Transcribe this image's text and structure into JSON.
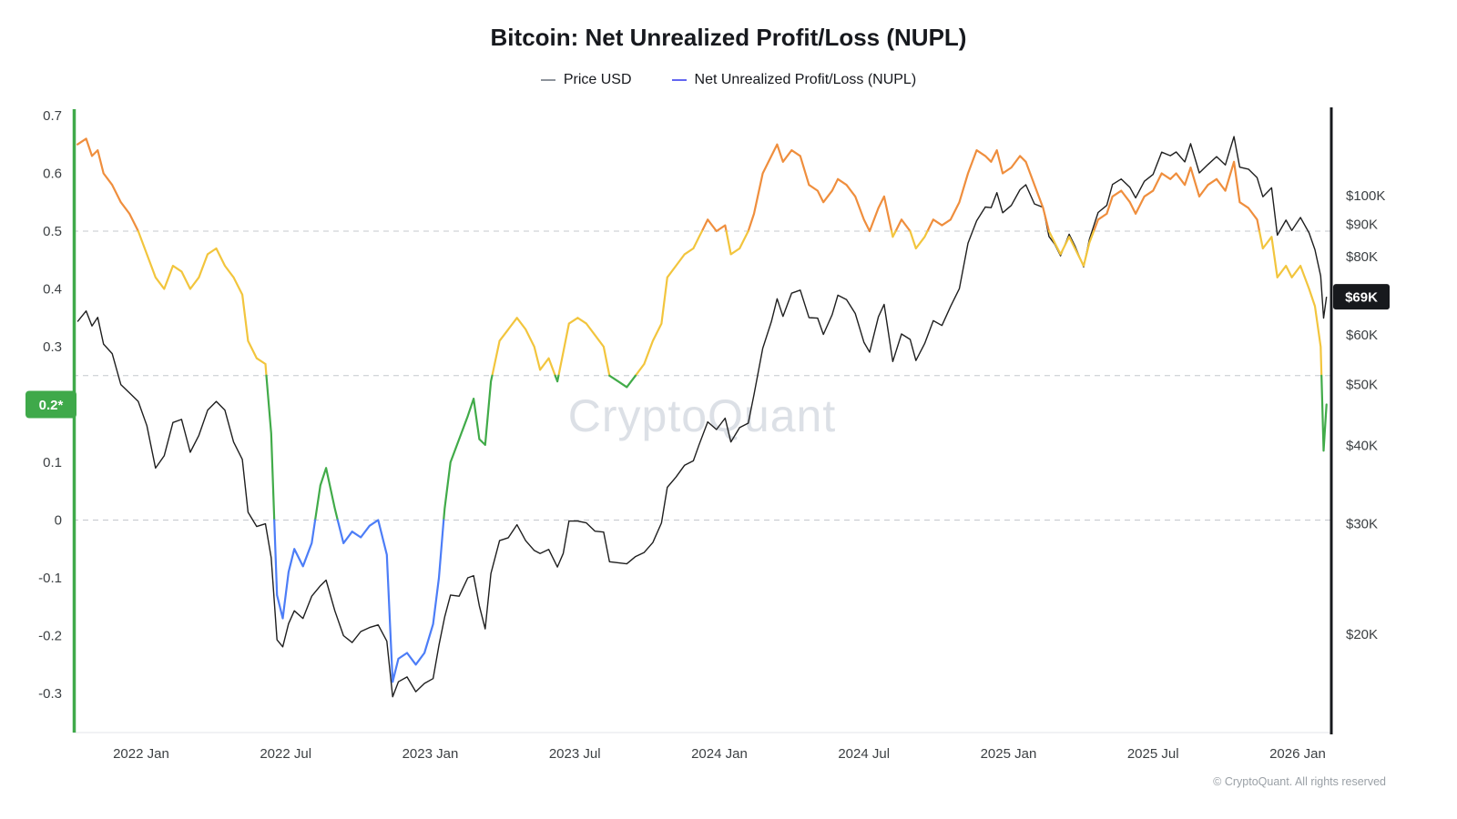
{
  "chart_data": {
    "type": "line",
    "title": "Bitcoin: Net Unrealized Profit/Loss (NUPL)",
    "x_unit": "decimal_year",
    "legend_position": "top",
    "nupl_thresholds": [
      0.5,
      0.25,
      0
    ],
    "x": [
      2021.78,
      2021.81,
      2021.83,
      2021.85,
      2021.87,
      2021.9,
      2021.93,
      2021.96,
      2021.99,
      2022.02,
      2022.05,
      2022.08,
      2022.11,
      2022.14,
      2022.17,
      2022.2,
      2022.23,
      2022.26,
      2022.29,
      2022.32,
      2022.35,
      2022.37,
      2022.4,
      2022.43,
      2022.45,
      2022.47,
      2022.49,
      2022.51,
      2022.53,
      2022.56,
      2022.59,
      2022.62,
      2022.64,
      2022.67,
      2022.7,
      2022.73,
      2022.76,
      2022.79,
      2022.82,
      2022.85,
      2022.87,
      2022.89,
      2022.92,
      2022.95,
      2022.98,
      2023.01,
      2023.03,
      2023.05,
      2023.07,
      2023.1,
      2023.13,
      2023.15,
      2023.17,
      2023.19,
      2023.21,
      2023.24,
      2023.27,
      2023.3,
      2023.33,
      2023.36,
      2023.38,
      2023.41,
      2023.44,
      2023.46,
      2023.48,
      2023.51,
      2023.54,
      2023.57,
      2023.6,
      2023.62,
      2023.65,
      2023.68,
      2023.71,
      2023.74,
      2023.77,
      2023.8,
      2023.82,
      2023.85,
      2023.88,
      2023.91,
      2023.93,
      2023.96,
      2023.99,
      2024.02,
      2024.04,
      2024.07,
      2024.1,
      2024.12,
      2024.15,
      2024.18,
      2024.2,
      2024.22,
      2024.25,
      2024.28,
      2024.31,
      2024.34,
      2024.36,
      2024.39,
      2024.41,
      2024.44,
      2024.47,
      2024.5,
      2024.52,
      2024.55,
      2024.57,
      2024.6,
      2024.63,
      2024.66,
      2024.68,
      2024.71,
      2024.74,
      2024.77,
      2024.8,
      2024.83,
      2024.86,
      2024.89,
      2024.92,
      2024.94,
      2024.96,
      2024.98,
      2025.01,
      2025.04,
      2025.06,
      2025.09,
      2025.12,
      2025.14,
      2025.16,
      2025.18,
      2025.21,
      2025.23,
      2025.26,
      2025.28,
      2025.31,
      2025.34,
      2025.36,
      2025.39,
      2025.42,
      2025.44,
      2025.47,
      2025.5,
      2025.53,
      2025.56,
      2025.58,
      2025.61,
      2025.63,
      2025.66,
      2025.69,
      2025.72,
      2025.75,
      2025.78,
      2025.8,
      2025.83,
      2025.86,
      2025.88,
      2025.91,
      2025.93,
      2025.96,
      2025.98,
      2026.01,
      2026.04,
      2026.06,
      2026.08,
      2026.09,
      2026.1
    ],
    "series": [
      {
        "name": "Price USD",
        "axis": "right",
        "scale": "log",
        "unit": "USD_thousands",
        "legend_color": "#8d939b",
        "line_color": "#1f1f1f",
        "values": [
          63,
          65.5,
          62,
          64,
          58,
          56,
          50,
          48.5,
          47,
          43,
          36.8,
          38.5,
          43.5,
          44,
          39,
          41.5,
          45.5,
          47,
          45.5,
          40.5,
          38,
          31.3,
          29.7,
          30,
          26.5,
          19.6,
          19.1,
          20.8,
          21.8,
          21.2,
          23,
          23.9,
          24.4,
          21.8,
          19.9,
          19.4,
          20.2,
          20.5,
          20.7,
          19.5,
          15.9,
          16.8,
          17.1,
          16.2,
          16.7,
          17,
          19.2,
          21.3,
          23.1,
          23,
          24.6,
          24.8,
          22.2,
          20.4,
          25,
          28.2,
          28.5,
          29.9,
          28.2,
          27.2,
          26.9,
          27.3,
          25.6,
          26.9,
          30.3,
          30.3,
          30.1,
          29.2,
          29.1,
          26.1,
          26,
          25.9,
          26.6,
          27,
          28,
          30.1,
          34.3,
          35.6,
          37.2,
          37.8,
          40.1,
          43.6,
          42.4,
          44.2,
          40.5,
          42.7,
          43.4,
          48.2,
          57.1,
          63,
          68.5,
          64.2,
          69.9,
          70.7,
          63.9,
          63.8,
          60.1,
          64.6,
          69.4,
          68.3,
          64.9,
          58.4,
          56.3,
          64.1,
          67.1,
          54.4,
          60.2,
          59,
          54.6,
          58.1,
          63.2,
          62.1,
          66.6,
          71.1,
          84,
          91.2,
          95.9,
          95.7,
          101.1,
          93.9,
          96.5,
          102.2,
          104.1,
          97,
          95.8,
          86.1,
          83.7,
          80.2,
          86.8,
          83.1,
          77,
          85.2,
          94,
          96.5,
          104.2,
          106.3,
          103.1,
          99.2,
          105.4,
          108.1,
          117.3,
          115.8,
          117.4,
          113.2,
          121,
          108.7,
          112.1,
          115.4,
          111.9,
          124.2,
          111,
          110.2,
          106.8,
          99.6,
          102.9,
          86.5,
          91.4,
          88,
          92.3,
          87.2,
          82,
          74.5,
          63.8,
          69
        ]
      },
      {
        "name": "Net Unrealized Profit/Loss (NUPL)",
        "axis": "left",
        "legend_color": "#6366F1",
        "band_colors": {
          "above_0_5": "#EF8E3D",
          "between_0_25_0_5": "#F2C53D",
          "between_0_0_25": "#41AB49",
          "below_0": "#4C7DF7"
        },
        "values": [
          0.65,
          0.66,
          0.63,
          0.64,
          0.6,
          0.58,
          0.55,
          0.53,
          0.5,
          0.46,
          0.42,
          0.4,
          0.44,
          0.43,
          0.4,
          0.42,
          0.46,
          0.47,
          0.44,
          0.42,
          0.39,
          0.31,
          0.28,
          0.27,
          0.15,
          -0.13,
          -0.17,
          -0.09,
          -0.05,
          -0.08,
          -0.04,
          0.06,
          0.09,
          0.02,
          -0.04,
          -0.02,
          -0.03,
          -0.01,
          0,
          -0.06,
          -0.28,
          -0.24,
          -0.23,
          -0.25,
          -0.23,
          -0.18,
          -0.1,
          0.02,
          0.1,
          0.14,
          0.18,
          0.21,
          0.14,
          0.13,
          0.24,
          0.31,
          0.33,
          0.35,
          0.33,
          0.3,
          0.26,
          0.28,
          0.24,
          0.29,
          0.34,
          0.35,
          0.34,
          0.32,
          0.3,
          0.25,
          0.24,
          0.23,
          0.25,
          0.27,
          0.31,
          0.34,
          0.42,
          0.44,
          0.46,
          0.47,
          0.49,
          0.52,
          0.5,
          0.51,
          0.46,
          0.47,
          0.5,
          0.53,
          0.6,
          0.63,
          0.65,
          0.62,
          0.64,
          0.63,
          0.58,
          0.57,
          0.55,
          0.57,
          0.59,
          0.58,
          0.56,
          0.52,
          0.5,
          0.54,
          0.56,
          0.49,
          0.52,
          0.5,
          0.47,
          0.49,
          0.52,
          0.51,
          0.52,
          0.55,
          0.6,
          0.64,
          0.63,
          0.62,
          0.64,
          0.6,
          0.61,
          0.63,
          0.62,
          0.58,
          0.54,
          0.5,
          0.48,
          0.46,
          0.49,
          0.47,
          0.44,
          0.48,
          0.52,
          0.53,
          0.56,
          0.57,
          0.55,
          0.53,
          0.56,
          0.57,
          0.6,
          0.59,
          0.6,
          0.58,
          0.61,
          0.56,
          0.58,
          0.59,
          0.57,
          0.62,
          0.55,
          0.54,
          0.52,
          0.47,
          0.49,
          0.42,
          0.44,
          0.42,
          0.44,
          0.4,
          0.37,
          0.3,
          0.12,
          0.2
        ]
      }
    ],
    "axes": {
      "left": {
        "range": [
          -0.3,
          0.7
        ],
        "ticks": [
          {
            "label": "0.7",
            "value": 0.7
          },
          {
            "label": "0.6",
            "value": 0.6
          },
          {
            "label": "0.5",
            "value": 0.5
          },
          {
            "label": "0.4",
            "value": 0.4
          },
          {
            "label": "0.3",
            "value": 0.3
          },
          {
            "label": "0.2",
            "value": 0.2
          },
          {
            "label": "0.1",
            "value": 0.1
          },
          {
            "label": "0",
            "value": 0
          },
          {
            "label": "-0.1",
            "value": -0.1
          },
          {
            "label": "-0.2",
            "value": -0.2
          },
          {
            "label": "-0.3",
            "value": -0.3
          }
        ]
      },
      "right": {
        "scale": "log",
        "ticks": [
          {
            "label": "$100K",
            "value_k": 100
          },
          {
            "label": "$90K",
            "value_k": 90
          },
          {
            "label": "$80K",
            "value_k": 80
          },
          {
            "label": "$60K",
            "value_k": 60
          },
          {
            "label": "$50K",
            "value_k": 50
          },
          {
            "label": "$40K",
            "value_k": 40
          },
          {
            "label": "$30K",
            "value_k": 30
          },
          {
            "label": "$20K",
            "value_k": 20
          }
        ]
      },
      "x": {
        "ticks": [
          {
            "label": "2022 Jan",
            "t": 2022.0
          },
          {
            "label": "2022 Jul",
            "t": 2022.5
          },
          {
            "label": "2023 Jan",
            "t": 2023.0
          },
          {
            "label": "2023 Jul",
            "t": 2023.5
          },
          {
            "label": "2024 Jan",
            "t": 2024.0
          },
          {
            "label": "2024 Jul",
            "t": 2024.5
          },
          {
            "label": "2025 Jan",
            "t": 2025.0
          },
          {
            "label": "2025 Jul",
            "t": 2025.5
          },
          {
            "label": "2026 Jan",
            "t": 2026.0
          }
        ]
      }
    }
  },
  "badges": {
    "left": {
      "text": "0.2*",
      "value": 0.2,
      "color": "#3FA94A"
    },
    "right": {
      "text": "$69K",
      "value_k": 69,
      "color": "#17191d"
    }
  },
  "colors": {
    "left_axis": "#3FA94A",
    "right_axis": "#17191d",
    "grid": "#c4c8cd",
    "axis_label": "#3c4043"
  },
  "watermark": "CryptoQuant",
  "footer": "© CryptoQuant. All rights reserved"
}
